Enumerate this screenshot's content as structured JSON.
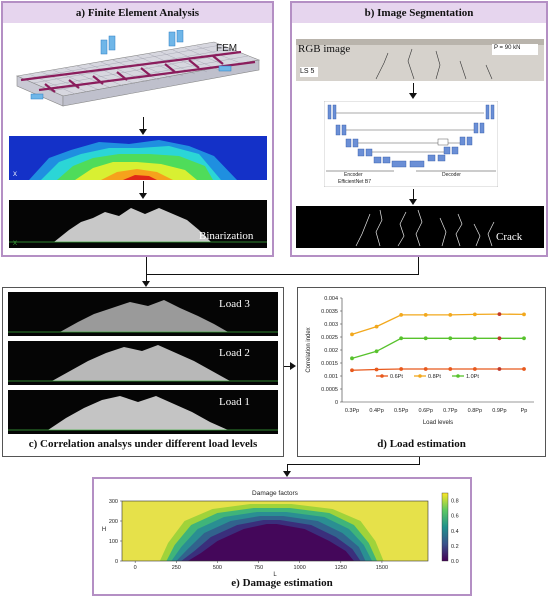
{
  "panel_a": {
    "title": "a) Finite Element Analysis",
    "fem_label": "FEM",
    "binarization_label": "Binarization"
  },
  "panel_b": {
    "title": "b) Image Segmentation",
    "rgb_label": "RGB image",
    "ls_label": "LS 5",
    "load_label": "P = 90 kN",
    "encoder_label": "Encoder",
    "encoder_sub": "EfficientNet B7",
    "decoder_label": "Decoder",
    "crack_label": "Crack"
  },
  "panel_c": {
    "caption": "c) Correlation analsys under different load levels",
    "loads": [
      "Load 3",
      "Load 2",
      "Load 1"
    ]
  },
  "panel_d": {
    "caption": "d) Load estimation",
    "chart_data": {
      "type": "line",
      "xlabel": "Load levels",
      "ylabel": "Correlation index",
      "categories": [
        "0.3Pp",
        "0.4Pp",
        "0.5Pp",
        "0.6Pp",
        "0.7Pp",
        "0.8Pp",
        "0.9Pp",
        "Pp"
      ],
      "ylim": [
        0,
        0.004
      ],
      "yticks": [
        "0",
        "0.0005",
        "0.001",
        "0.0015",
        "0.002",
        "0.0025",
        "0.003",
        "0.0035",
        "0.004"
      ],
      "series": [
        {
          "name": "0.6Pt",
          "color": "#e8591c",
          "values": [
            0.00122,
            0.00125,
            0.00127,
            0.00127,
            0.00127,
            0.00127,
            0.00127,
            0.00127
          ],
          "highlight": 6
        },
        {
          "name": "0.8Pt",
          "color": "#f2a81d",
          "values": [
            0.0026,
            0.0029,
            0.00335,
            0.00335,
            0.00335,
            0.00337,
            0.00338,
            0.00337
          ],
          "highlight": 6
        },
        {
          "name": "1.0Pt",
          "color": "#57c22c",
          "values": [
            0.00168,
            0.00195,
            0.00245,
            0.00245,
            0.00245,
            0.00245,
            0.00245,
            0.00245
          ],
          "highlight": 6
        }
      ],
      "highlight_color": "#c0392b"
    }
  },
  "panel_e": {
    "caption": "e) Damage estimation",
    "chart_data": {
      "type": "heatmap",
      "title": "Damage factors",
      "xlabel": "L",
      "ylabel": "H",
      "xticks": [
        "0",
        "250",
        "500",
        "750",
        "1000",
        "1250",
        "1500"
      ],
      "yticks": [
        "0",
        "100",
        "200",
        "300"
      ],
      "colorbar_ticks": [
        "0.0",
        "0.2",
        "0.4",
        "0.6",
        "0.8"
      ],
      "xlim": [
        -80,
        1780
      ],
      "ylim": [
        0,
        300
      ]
    }
  }
}
